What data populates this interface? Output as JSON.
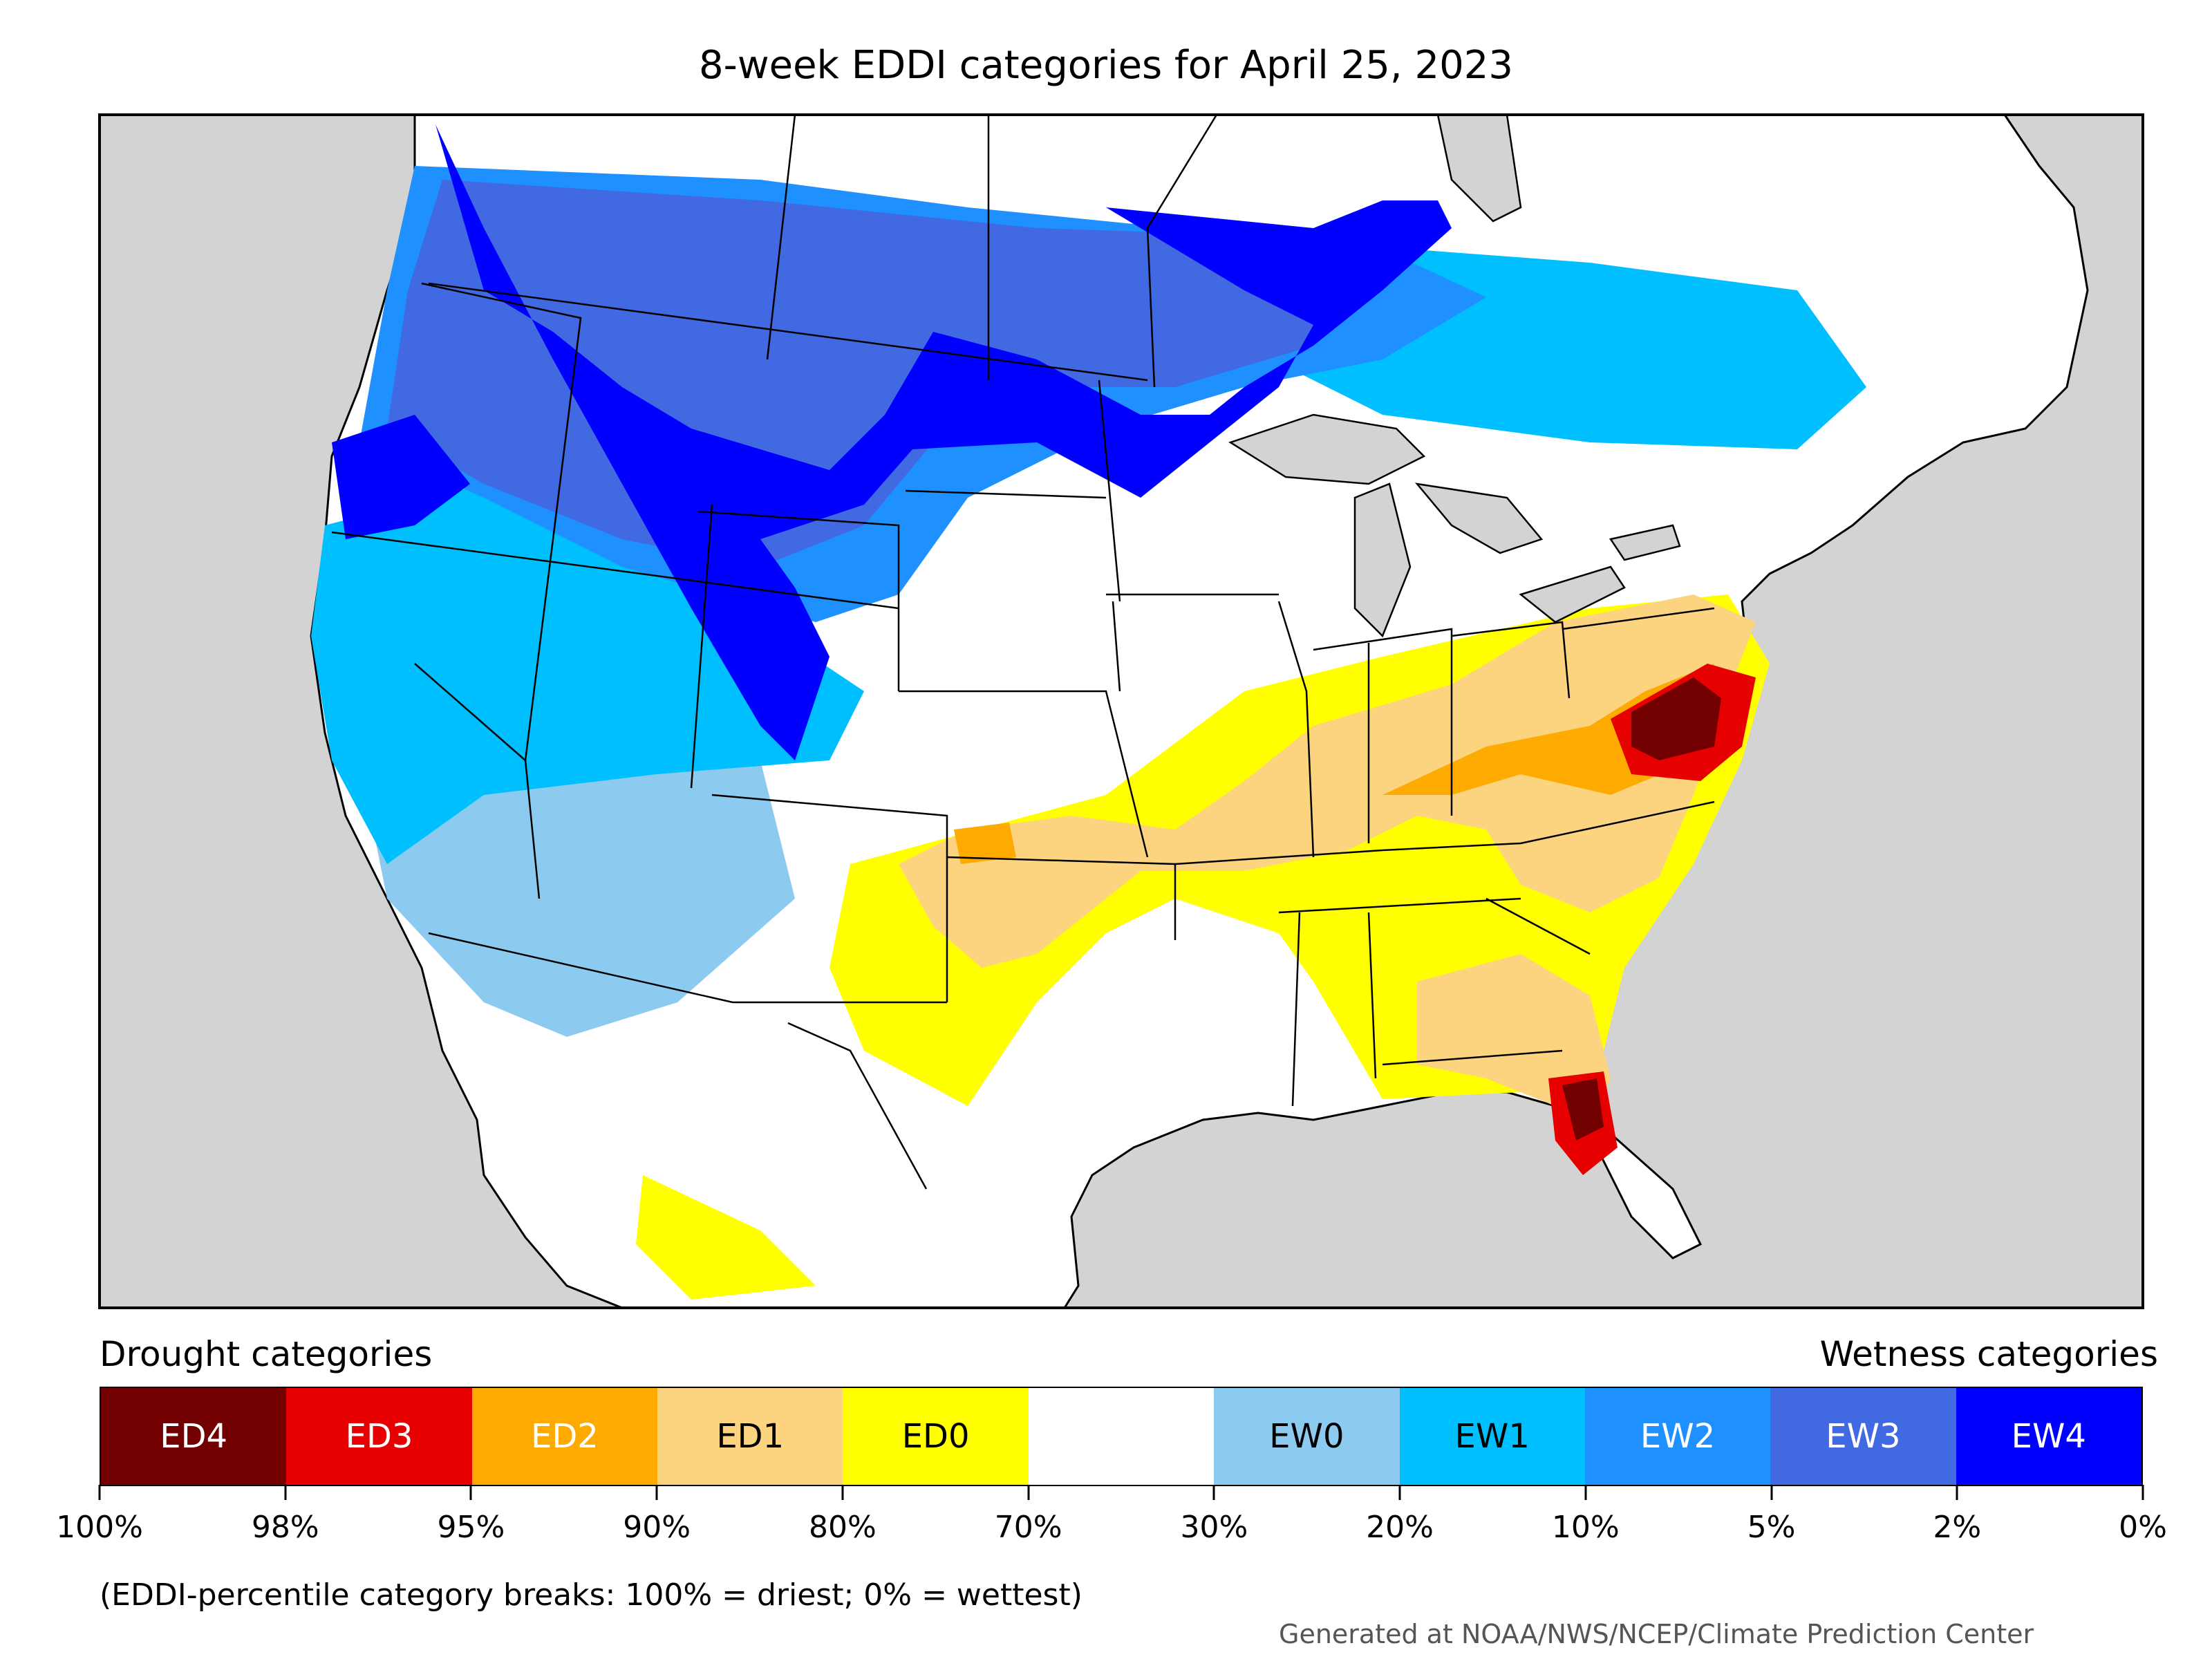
{
  "title": "8-week EDDI categories for April 25, 2023",
  "legend": {
    "left_header": "Drought categories",
    "right_header": "Wetness categories",
    "categories": [
      {
        "label": "ED4",
        "color": "#730000",
        "text_color": "#ffffff"
      },
      {
        "label": "ED3",
        "color": "#e60000",
        "text_color": "#ffffff"
      },
      {
        "label": "ED2",
        "color": "#ffaa00",
        "text_color": "#ffffff"
      },
      {
        "label": "ED1",
        "color": "#fcd37f",
        "text_color": "#000000"
      },
      {
        "label": "ED0",
        "color": "#ffff00",
        "text_color": "#000000"
      },
      {
        "label": "",
        "color": "#ffffff",
        "text_color": "#000000"
      },
      {
        "label": "EW0",
        "color": "#8ccbef",
        "text_color": "#000000"
      },
      {
        "label": "EW1",
        "color": "#00bfff",
        "text_color": "#000000"
      },
      {
        "label": "EW2",
        "color": "#1e90ff",
        "text_color": "#ffffff"
      },
      {
        "label": "EW3",
        "color": "#4169e1",
        "text_color": "#ffffff"
      },
      {
        "label": "EW4",
        "color": "#0000ff",
        "text_color": "#ffffff"
      }
    ],
    "tick_labels": [
      "100%",
      "98%",
      "95%",
      "90%",
      "80%",
      "70%",
      "30%",
      "20%",
      "10%",
      "5%",
      "2%",
      "0%"
    ]
  },
  "note": "(EDDI-percentile category breaks: 100% = driest; 0% = wettest)",
  "credit": "Generated at NOAA/NWS/NCEP/Climate Prediction Center",
  "colors": {
    "ocean_background": "#d3d3d3",
    "land_background": "#ffffff",
    "frame": "#000000"
  }
}
